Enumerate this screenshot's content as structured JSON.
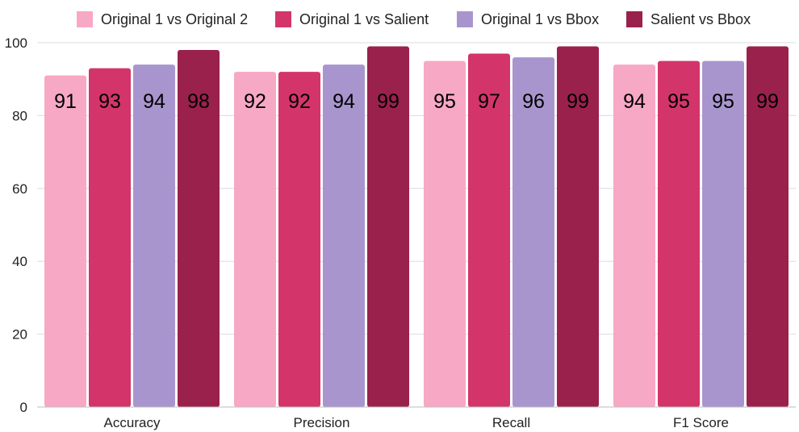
{
  "chart_data": {
    "type": "bar",
    "categories": [
      "Accuracy",
      "Precision",
      "Recall",
      "F1 Score"
    ],
    "series": [
      {
        "name": "Original 1 vs Original 2",
        "color": "#f7a8c4",
        "values": [
          91,
          92,
          95,
          94
        ]
      },
      {
        "name": "Original 1 vs Salient",
        "color": "#d3356b",
        "values": [
          93,
          92,
          97,
          95
        ]
      },
      {
        "name": "Original 1 vs Bbox",
        "color": "#a995ce",
        "values": [
          94,
          94,
          96,
          95
        ]
      },
      {
        "name": "Salient vs Bbox",
        "color": "#9a214b",
        "values": [
          98,
          99,
          99,
          99
        ]
      }
    ],
    "title": "",
    "xlabel": "",
    "ylabel": "",
    "ylim": [
      0,
      100
    ],
    "yticks": [
      0,
      20,
      40,
      60,
      80,
      100
    ],
    "grid": true,
    "legend_position": "top",
    "data_labels": true,
    "data_label_colors": [
      "#000000",
      "#000000",
      "#000000",
      "#ffffff"
    ]
  }
}
